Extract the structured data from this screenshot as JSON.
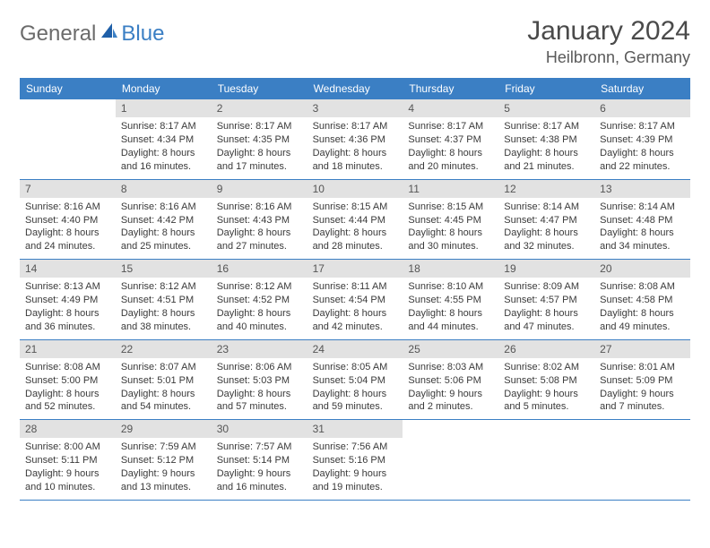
{
  "brand": {
    "general": "General",
    "blue": "Blue"
  },
  "title": "January 2024",
  "location": "Heilbronn, Germany",
  "colors": {
    "header_bg": "#3b7fc4",
    "header_text": "#ffffff",
    "daynum_bg": "#e2e2e2",
    "border": "#3b7fc4",
    "body_text": "#3a3a3a",
    "logo_gray": "#6b6b6b",
    "logo_blue": "#3b7fc4"
  },
  "day_names": [
    "Sunday",
    "Monday",
    "Tuesday",
    "Wednesday",
    "Thursday",
    "Friday",
    "Saturday"
  ],
  "weeks": [
    [
      {
        "empty": true
      },
      {
        "n": "1",
        "sr": "Sunrise: 8:17 AM",
        "ss": "Sunset: 4:34 PM",
        "d1": "Daylight: 8 hours",
        "d2": "and 16 minutes."
      },
      {
        "n": "2",
        "sr": "Sunrise: 8:17 AM",
        "ss": "Sunset: 4:35 PM",
        "d1": "Daylight: 8 hours",
        "d2": "and 17 minutes."
      },
      {
        "n": "3",
        "sr": "Sunrise: 8:17 AM",
        "ss": "Sunset: 4:36 PM",
        "d1": "Daylight: 8 hours",
        "d2": "and 18 minutes."
      },
      {
        "n": "4",
        "sr": "Sunrise: 8:17 AM",
        "ss": "Sunset: 4:37 PM",
        "d1": "Daylight: 8 hours",
        "d2": "and 20 minutes."
      },
      {
        "n": "5",
        "sr": "Sunrise: 8:17 AM",
        "ss": "Sunset: 4:38 PM",
        "d1": "Daylight: 8 hours",
        "d2": "and 21 minutes."
      },
      {
        "n": "6",
        "sr": "Sunrise: 8:17 AM",
        "ss": "Sunset: 4:39 PM",
        "d1": "Daylight: 8 hours",
        "d2": "and 22 minutes."
      }
    ],
    [
      {
        "n": "7",
        "sr": "Sunrise: 8:16 AM",
        "ss": "Sunset: 4:40 PM",
        "d1": "Daylight: 8 hours",
        "d2": "and 24 minutes."
      },
      {
        "n": "8",
        "sr": "Sunrise: 8:16 AM",
        "ss": "Sunset: 4:42 PM",
        "d1": "Daylight: 8 hours",
        "d2": "and 25 minutes."
      },
      {
        "n": "9",
        "sr": "Sunrise: 8:16 AM",
        "ss": "Sunset: 4:43 PM",
        "d1": "Daylight: 8 hours",
        "d2": "and 27 minutes."
      },
      {
        "n": "10",
        "sr": "Sunrise: 8:15 AM",
        "ss": "Sunset: 4:44 PM",
        "d1": "Daylight: 8 hours",
        "d2": "and 28 minutes."
      },
      {
        "n": "11",
        "sr": "Sunrise: 8:15 AM",
        "ss": "Sunset: 4:45 PM",
        "d1": "Daylight: 8 hours",
        "d2": "and 30 minutes."
      },
      {
        "n": "12",
        "sr": "Sunrise: 8:14 AM",
        "ss": "Sunset: 4:47 PM",
        "d1": "Daylight: 8 hours",
        "d2": "and 32 minutes."
      },
      {
        "n": "13",
        "sr": "Sunrise: 8:14 AM",
        "ss": "Sunset: 4:48 PM",
        "d1": "Daylight: 8 hours",
        "d2": "and 34 minutes."
      }
    ],
    [
      {
        "n": "14",
        "sr": "Sunrise: 8:13 AM",
        "ss": "Sunset: 4:49 PM",
        "d1": "Daylight: 8 hours",
        "d2": "and 36 minutes."
      },
      {
        "n": "15",
        "sr": "Sunrise: 8:12 AM",
        "ss": "Sunset: 4:51 PM",
        "d1": "Daylight: 8 hours",
        "d2": "and 38 minutes."
      },
      {
        "n": "16",
        "sr": "Sunrise: 8:12 AM",
        "ss": "Sunset: 4:52 PM",
        "d1": "Daylight: 8 hours",
        "d2": "and 40 minutes."
      },
      {
        "n": "17",
        "sr": "Sunrise: 8:11 AM",
        "ss": "Sunset: 4:54 PM",
        "d1": "Daylight: 8 hours",
        "d2": "and 42 minutes."
      },
      {
        "n": "18",
        "sr": "Sunrise: 8:10 AM",
        "ss": "Sunset: 4:55 PM",
        "d1": "Daylight: 8 hours",
        "d2": "and 44 minutes."
      },
      {
        "n": "19",
        "sr": "Sunrise: 8:09 AM",
        "ss": "Sunset: 4:57 PM",
        "d1": "Daylight: 8 hours",
        "d2": "and 47 minutes."
      },
      {
        "n": "20",
        "sr": "Sunrise: 8:08 AM",
        "ss": "Sunset: 4:58 PM",
        "d1": "Daylight: 8 hours",
        "d2": "and 49 minutes."
      }
    ],
    [
      {
        "n": "21",
        "sr": "Sunrise: 8:08 AM",
        "ss": "Sunset: 5:00 PM",
        "d1": "Daylight: 8 hours",
        "d2": "and 52 minutes."
      },
      {
        "n": "22",
        "sr": "Sunrise: 8:07 AM",
        "ss": "Sunset: 5:01 PM",
        "d1": "Daylight: 8 hours",
        "d2": "and 54 minutes."
      },
      {
        "n": "23",
        "sr": "Sunrise: 8:06 AM",
        "ss": "Sunset: 5:03 PM",
        "d1": "Daylight: 8 hours",
        "d2": "and 57 minutes."
      },
      {
        "n": "24",
        "sr": "Sunrise: 8:05 AM",
        "ss": "Sunset: 5:04 PM",
        "d1": "Daylight: 8 hours",
        "d2": "and 59 minutes."
      },
      {
        "n": "25",
        "sr": "Sunrise: 8:03 AM",
        "ss": "Sunset: 5:06 PM",
        "d1": "Daylight: 9 hours",
        "d2": "and 2 minutes."
      },
      {
        "n": "26",
        "sr": "Sunrise: 8:02 AM",
        "ss": "Sunset: 5:08 PM",
        "d1": "Daylight: 9 hours",
        "d2": "and 5 minutes."
      },
      {
        "n": "27",
        "sr": "Sunrise: 8:01 AM",
        "ss": "Sunset: 5:09 PM",
        "d1": "Daylight: 9 hours",
        "d2": "and 7 minutes."
      }
    ],
    [
      {
        "n": "28",
        "sr": "Sunrise: 8:00 AM",
        "ss": "Sunset: 5:11 PM",
        "d1": "Daylight: 9 hours",
        "d2": "and 10 minutes."
      },
      {
        "n": "29",
        "sr": "Sunrise: 7:59 AM",
        "ss": "Sunset: 5:12 PM",
        "d1": "Daylight: 9 hours",
        "d2": "and 13 minutes."
      },
      {
        "n": "30",
        "sr": "Sunrise: 7:57 AM",
        "ss": "Sunset: 5:14 PM",
        "d1": "Daylight: 9 hours",
        "d2": "and 16 minutes."
      },
      {
        "n": "31",
        "sr": "Sunrise: 7:56 AM",
        "ss": "Sunset: 5:16 PM",
        "d1": "Daylight: 9 hours",
        "d2": "and 19 minutes."
      },
      {
        "empty": true
      },
      {
        "empty": true
      },
      {
        "empty": true
      }
    ]
  ]
}
